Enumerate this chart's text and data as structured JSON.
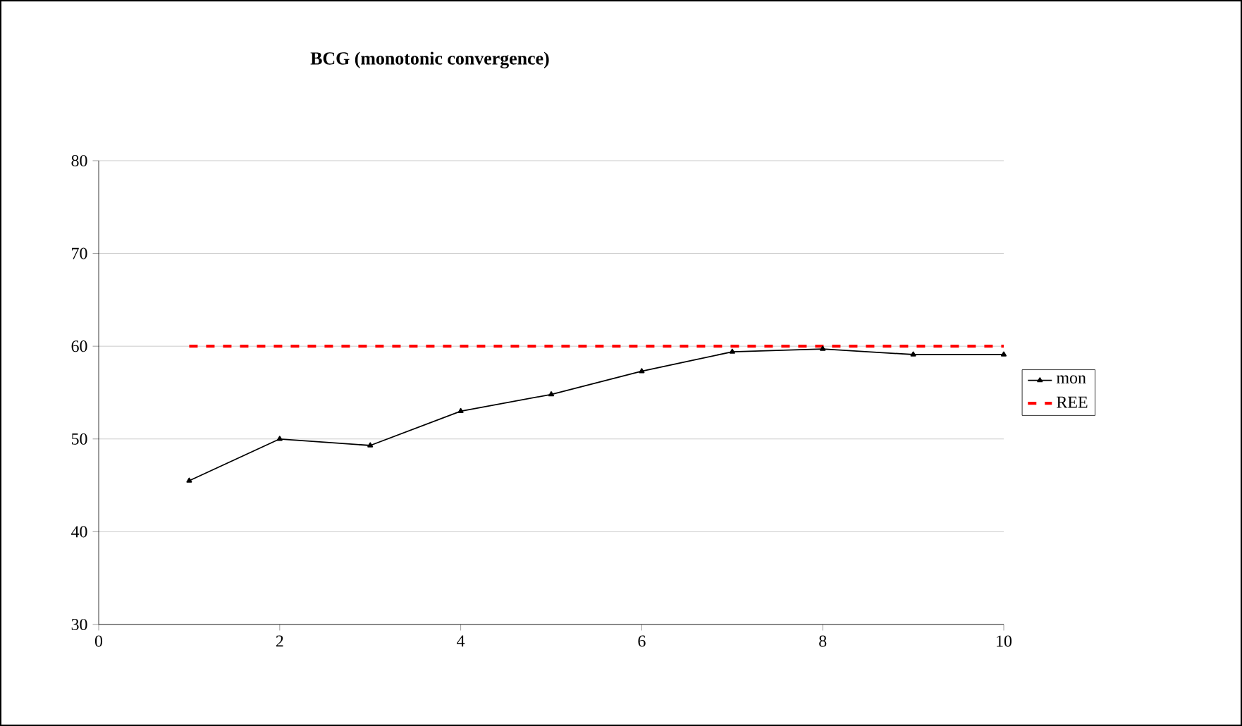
{
  "chart_data": {
    "type": "line",
    "title": "BCG (monotonic convergence)",
    "x": [
      1,
      2,
      3,
      4,
      5,
      6,
      7,
      8,
      9,
      10
    ],
    "series": [
      {
        "name": "mon",
        "color": "#000000",
        "values": [
          45.5,
          50,
          49.3,
          53,
          54.8,
          57.3,
          59.4,
          59.7,
          59.1,
          59.1
        ],
        "marker": "triangle",
        "line_style": "solid"
      },
      {
        "name": "REE",
        "color": "#ff0000",
        "values": [
          60,
          60,
          60,
          60,
          60,
          60,
          60,
          60,
          60,
          60
        ],
        "marker": "none",
        "line_style": "dashed"
      }
    ],
    "xlim": [
      0,
      10
    ],
    "xticks": [
      0,
      2,
      4,
      6,
      8,
      10
    ],
    "ylim": [
      30,
      80
    ],
    "yticks": [
      30,
      40,
      50,
      60,
      70,
      80
    ],
    "grid": "y",
    "legend": "right"
  }
}
